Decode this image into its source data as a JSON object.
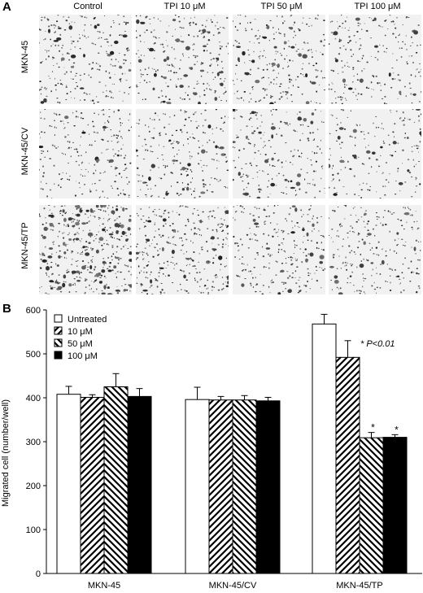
{
  "panel_a": {
    "letter": "A",
    "columns": [
      "Control",
      "TPI 10 μM",
      "TPI 50 μM",
      "TPI 100 μM"
    ],
    "rows": [
      "MKN-45",
      "MKN-45/CV",
      "MKN-45/TP"
    ]
  },
  "panel_b": {
    "letter": "B"
  },
  "chart_data": {
    "type": "bar",
    "categories": [
      "MKN-45",
      "MKN-45/CV",
      "MKN-45/TP"
    ],
    "ylabel": "Migrated cell (number/well)",
    "xlabel": "",
    "ylim": [
      0,
      600
    ],
    "yticks": [
      "0",
      "100",
      "200",
      "300",
      "400",
      "500",
      "600"
    ],
    "legend_position": "top-left",
    "annotation": "* P<0.01",
    "series": [
      {
        "name": "Untreated",
        "fill": "white",
        "values": [
          408,
          396,
          568
        ],
        "errors": [
          18,
          28,
          22
        ],
        "significant": [
          false,
          false,
          false
        ]
      },
      {
        "name": "10 μM",
        "fill": "hatch-right",
        "values": [
          401,
          395,
          492
        ],
        "errors": [
          6,
          8,
          38
        ],
        "significant": [
          false,
          false,
          false
        ]
      },
      {
        "name": "50 μM",
        "fill": "hatch-left",
        "values": [
          425,
          395,
          309
        ],
        "errors": [
          30,
          10,
          12
        ],
        "significant": [
          false,
          false,
          true
        ]
      },
      {
        "name": "100 μM",
        "fill": "black",
        "values": [
          403,
          393,
          310
        ],
        "errors": [
          18,
          8,
          6
        ],
        "significant": [
          false,
          false,
          true
        ]
      }
    ]
  }
}
